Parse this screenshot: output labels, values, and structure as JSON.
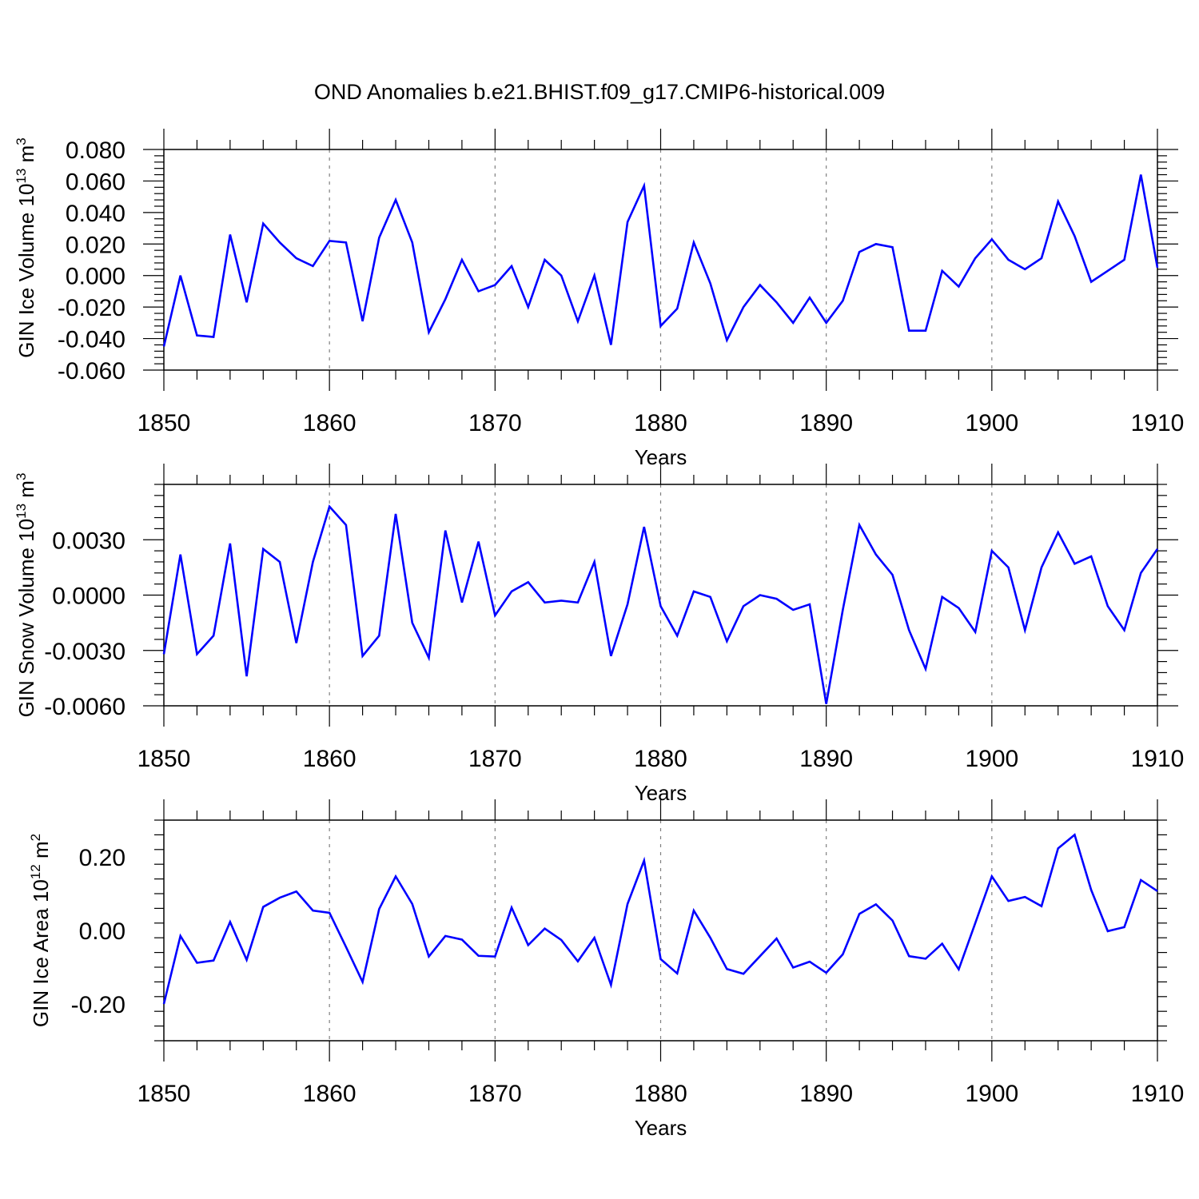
{
  "figure": {
    "title": "OND Anomalies b.e21.BHIST.f09_g17.CMIP6-historical.009"
  },
  "colors": {
    "series": "#0000ff",
    "axis": "#000000",
    "grid": "#808080"
  },
  "chart_data": [
    {
      "type": "line",
      "x_start": 1850,
      "x_step": 1,
      "xlim": [
        1850,
        1910
      ],
      "xticks": [
        "1850",
        "1860",
        "1870",
        "1880",
        "1890",
        "1900",
        "1910"
      ],
      "xlabel": "Years",
      "ylabel": "GIN Ice Volume 10",
      "ylabel_exponent": "13",
      "ylabel_unit": " m",
      "ylabel_unit_exponent": "3",
      "ylim": [
        -0.06,
        0.08
      ],
      "yticks": [
        "-0.060",
        "-0.040",
        "-0.020",
        "0.000",
        "0.020",
        "0.040",
        "0.060",
        "0.080"
      ],
      "grid": "vertical dashed at decades",
      "values": [
        -0.045,
        0.0,
        -0.038,
        -0.039,
        0.026,
        -0.017,
        0.033,
        0.021,
        0.011,
        0.006,
        0.022,
        0.021,
        -0.029,
        0.024,
        0.048,
        0.021,
        -0.036,
        -0.015,
        0.01,
        -0.01,
        -0.006,
        0.006,
        -0.02,
        0.01,
        0.0,
        -0.029,
        0.0,
        -0.044,
        0.034,
        0.057,
        -0.032,
        -0.021,
        0.021,
        -0.005,
        -0.041,
        -0.02,
        -0.006,
        -0.017,
        -0.03,
        -0.014,
        -0.03,
        -0.016,
        0.015,
        0.02,
        0.018,
        -0.035,
        -0.035,
        0.003,
        -0.007,
        0.011,
        0.023,
        0.01,
        0.004,
        0.011,
        0.047,
        0.025,
        -0.004,
        0.003,
        0.01,
        0.064,
        0.005
      ]
    },
    {
      "type": "line",
      "x_start": 1850,
      "x_step": 1,
      "xlim": [
        1850,
        1910
      ],
      "xticks": [
        "1850",
        "1860",
        "1870",
        "1880",
        "1890",
        "1900",
        "1910"
      ],
      "xlabel": "Years",
      "ylabel": "GIN Snow Volume 10",
      "ylabel_exponent": "13",
      "ylabel_unit": " m",
      "ylabel_unit_exponent": "3",
      "ylim": [
        -0.006,
        0.006
      ],
      "yticks": [
        "-0.0060",
        "-0.0030",
        "0.0000",
        "0.0030"
      ],
      "grid": "vertical dashed at decades",
      "values": [
        -0.0032,
        0.0022,
        -0.0032,
        -0.0022,
        0.0028,
        -0.0044,
        0.0025,
        0.0018,
        -0.0026,
        0.0018,
        0.0048,
        0.0038,
        -0.0033,
        -0.0022,
        0.0044,
        -0.0015,
        -0.0034,
        0.0035,
        -0.0004,
        0.0029,
        -0.0011,
        0.0002,
        0.0007,
        -0.0004,
        -0.0003,
        -0.0004,
        0.0018,
        -0.0033,
        -0.0005,
        0.0037,
        -0.0006,
        -0.0022,
        0.0002,
        -0.0001,
        -0.0025,
        -0.0006,
        0.0,
        -0.0002,
        -0.0008,
        -0.0005,
        -0.0059,
        -0.0008,
        0.0038,
        0.0022,
        0.0011,
        -0.0019,
        -0.004,
        -0.0001,
        -0.0007,
        -0.002,
        0.0024,
        0.0015,
        -0.0019,
        0.0015,
        0.0034,
        0.0017,
        0.0021,
        -0.0006,
        -0.0019,
        0.0012,
        0.0025
      ]
    },
    {
      "type": "line",
      "x_start": 1850,
      "x_step": 1,
      "xlim": [
        1850,
        1910
      ],
      "xticks": [
        "1850",
        "1860",
        "1870",
        "1880",
        "1890",
        "1900",
        "1910"
      ],
      "xlabel": "Years",
      "ylabel": "GIN Ice Area 10",
      "ylabel_exponent": "12",
      "ylabel_unit": " m",
      "ylabel_unit_exponent": "2",
      "ylim": [
        -0.3,
        0.3
      ],
      "yticks": [
        "-0.20",
        "0.00",
        "0.20"
      ],
      "grid": "vertical dashed at decades",
      "values": [
        -0.2,
        -0.015,
        -0.088,
        -0.082,
        0.023,
        -0.08,
        0.064,
        0.089,
        0.106,
        0.054,
        0.048,
        -0.045,
        -0.14,
        0.058,
        0.147,
        0.072,
        -0.071,
        -0.015,
        -0.025,
        -0.069,
        -0.071,
        0.062,
        -0.04,
        0.005,
        -0.026,
        -0.084,
        -0.02,
        -0.148,
        0.072,
        0.19,
        -0.078,
        -0.117,
        0.054,
        -0.02,
        -0.105,
        -0.118,
        -0.07,
        -0.022,
        -0.101,
        -0.085,
        -0.115,
        -0.065,
        0.045,
        0.071,
        0.027,
        -0.07,
        -0.077,
        -0.036,
        -0.106,
        0.02,
        0.147,
        0.08,
        0.091,
        0.066,
        0.223,
        0.26,
        0.11,
        -0.002,
        0.009,
        0.137,
        0.107
      ]
    }
  ]
}
